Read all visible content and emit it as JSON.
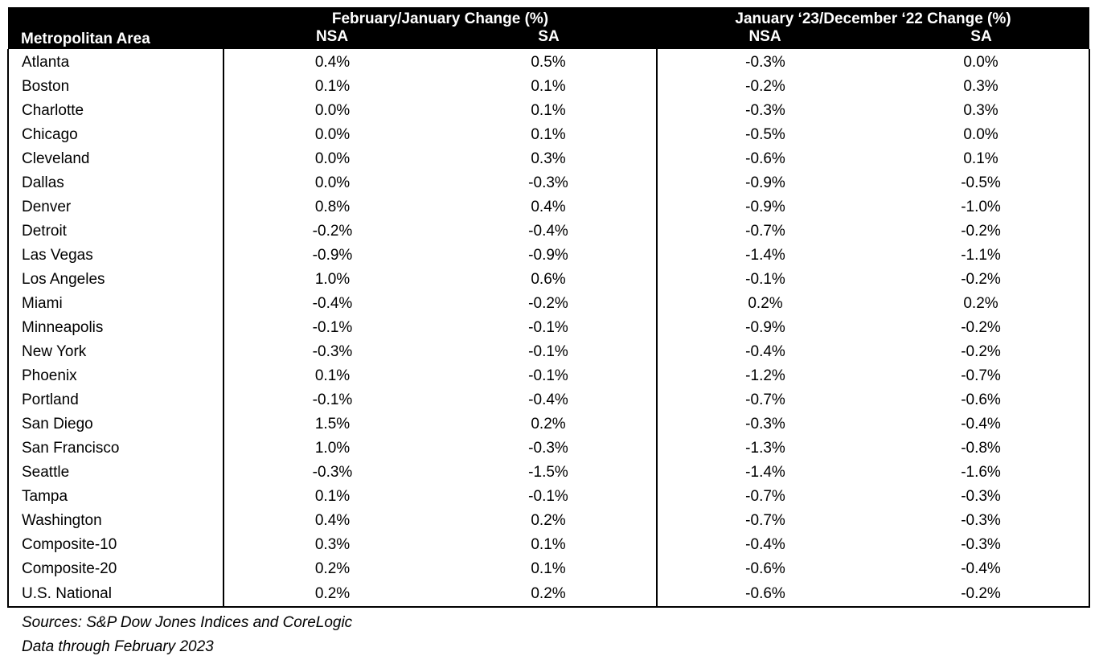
{
  "header": {
    "area_label": "Metropolitan Area",
    "group1_label": "February/January Change (%)",
    "group2_label": "January ‘23/December ‘22 Change (%)",
    "nsa_label": "NSA",
    "sa_label": "SA"
  },
  "rows": [
    {
      "area": "Atlanta",
      "fj_nsa": "0.4%",
      "fj_sa": "0.5%",
      "jd_nsa": "-0.3%",
      "jd_sa": "0.0%"
    },
    {
      "area": "Boston",
      "fj_nsa": "0.1%",
      "fj_sa": "0.1%",
      "jd_nsa": "-0.2%",
      "jd_sa": "0.3%"
    },
    {
      "area": "Charlotte",
      "fj_nsa": "0.0%",
      "fj_sa": "0.1%",
      "jd_nsa": "-0.3%",
      "jd_sa": "0.3%"
    },
    {
      "area": "Chicago",
      "fj_nsa": "0.0%",
      "fj_sa": "0.1%",
      "jd_nsa": "-0.5%",
      "jd_sa": "0.0%"
    },
    {
      "area": "Cleveland",
      "fj_nsa": "0.0%",
      "fj_sa": "0.3%",
      "jd_nsa": "-0.6%",
      "jd_sa": "0.1%"
    },
    {
      "area": "Dallas",
      "fj_nsa": "0.0%",
      "fj_sa": "-0.3%",
      "jd_nsa": "-0.9%",
      "jd_sa": "-0.5%"
    },
    {
      "area": "Denver",
      "fj_nsa": "0.8%",
      "fj_sa": "0.4%",
      "jd_nsa": "-0.9%",
      "jd_sa": "-1.0%"
    },
    {
      "area": "Detroit",
      "fj_nsa": "-0.2%",
      "fj_sa": "-0.4%",
      "jd_nsa": "-0.7%",
      "jd_sa": "-0.2%"
    },
    {
      "area": "Las Vegas",
      "fj_nsa": "-0.9%",
      "fj_sa": "-0.9%",
      "jd_nsa": "-1.4%",
      "jd_sa": "-1.1%"
    },
    {
      "area": "Los Angeles",
      "fj_nsa": "1.0%",
      "fj_sa": "0.6%",
      "jd_nsa": "-0.1%",
      "jd_sa": "-0.2%"
    },
    {
      "area": "Miami",
      "fj_nsa": "-0.4%",
      "fj_sa": "-0.2%",
      "jd_nsa": "0.2%",
      "jd_sa": "0.2%"
    },
    {
      "area": "Minneapolis",
      "fj_nsa": "-0.1%",
      "fj_sa": "-0.1%",
      "jd_nsa": "-0.9%",
      "jd_sa": "-0.2%"
    },
    {
      "area": "New York",
      "fj_nsa": "-0.3%",
      "fj_sa": "-0.1%",
      "jd_nsa": "-0.4%",
      "jd_sa": "-0.2%"
    },
    {
      "area": "Phoenix",
      "fj_nsa": "0.1%",
      "fj_sa": "-0.1%",
      "jd_nsa": "-1.2%",
      "jd_sa": "-0.7%"
    },
    {
      "area": "Portland",
      "fj_nsa": "-0.1%",
      "fj_sa": "-0.4%",
      "jd_nsa": "-0.7%",
      "jd_sa": "-0.6%"
    },
    {
      "area": "San Diego",
      "fj_nsa": "1.5%",
      "fj_sa": "0.2%",
      "jd_nsa": "-0.3%",
      "jd_sa": "-0.4%"
    },
    {
      "area": "San Francisco",
      "fj_nsa": "1.0%",
      "fj_sa": "-0.3%",
      "jd_nsa": "-1.3%",
      "jd_sa": "-0.8%"
    },
    {
      "area": "Seattle",
      "fj_nsa": "-0.3%",
      "fj_sa": "-1.5%",
      "jd_nsa": "-1.4%",
      "jd_sa": "-1.6%"
    },
    {
      "area": "Tampa",
      "fj_nsa": "0.1%",
      "fj_sa": "-0.1%",
      "jd_nsa": "-0.7%",
      "jd_sa": "-0.3%"
    },
    {
      "area": "Washington",
      "fj_nsa": "0.4%",
      "fj_sa": "0.2%",
      "jd_nsa": "-0.7%",
      "jd_sa": "-0.3%"
    },
    {
      "area": "Composite-10",
      "fj_nsa": "0.3%",
      "fj_sa": "0.1%",
      "jd_nsa": "-0.4%",
      "jd_sa": "-0.3%"
    },
    {
      "area": "Composite-20",
      "fj_nsa": "0.2%",
      "fj_sa": "0.1%",
      "jd_nsa": "-0.6%",
      "jd_sa": "-0.4%"
    },
    {
      "area": "U.S. National",
      "fj_nsa": "0.2%",
      "fj_sa": "0.2%",
      "jd_nsa": "-0.6%",
      "jd_sa": "-0.2%"
    }
  ],
  "notes": {
    "sources": "Sources: S&P Dow Jones Indices and CoreLogic",
    "data_through": "Data through February 2023"
  }
}
